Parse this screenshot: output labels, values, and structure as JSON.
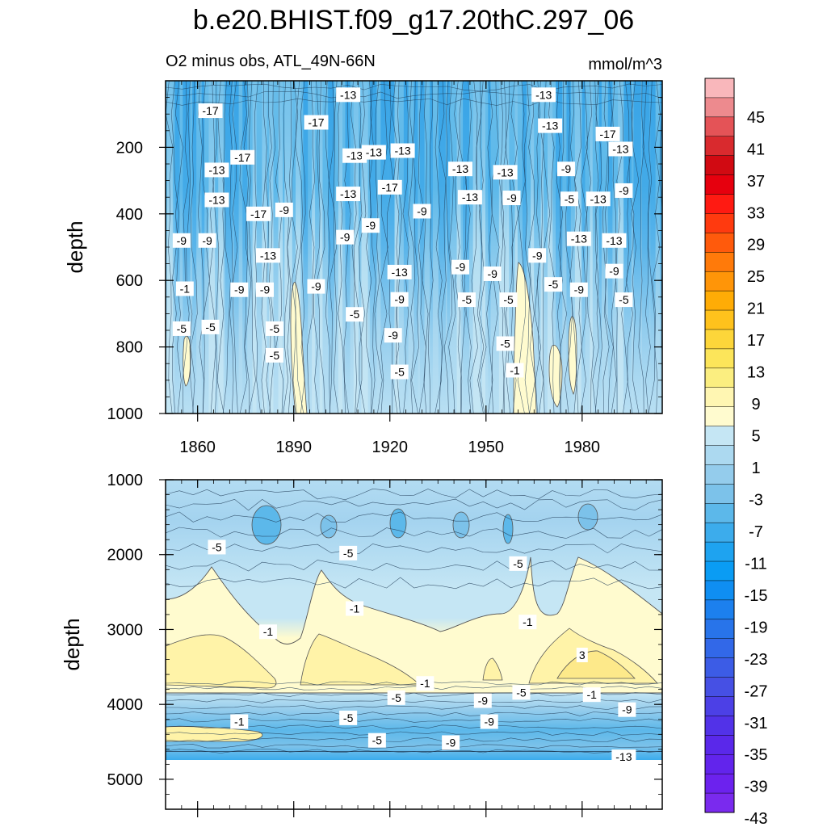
{
  "chart_data": {
    "type": "heatmap",
    "title": "b.e20.BHIST.f09_g17.20thC.297_06",
    "subtitle_left": "O2 minus obs, ATL_49N-66N",
    "units": "mmol/m^3",
    "xlim": [
      1850,
      2005
    ],
    "x_ticks": [
      "1860",
      "1890",
      "1920",
      "1950",
      "1980"
    ],
    "panels": [
      {
        "name": "upper",
        "ylabel": "depth",
        "ylim": [
          0,
          1000
        ],
        "y_ticks": [
          "200",
          "400",
          "600",
          "800",
          "1000"
        ],
        "contour_labels": [
          {
            "text": "-17",
            "x": 1864,
            "y": 90
          },
          {
            "text": "-13",
            "x": 1907,
            "y": 42
          },
          {
            "text": "-13",
            "x": 1968,
            "y": 42
          },
          {
            "text": "-17",
            "x": 1897,
            "y": 125
          },
          {
            "text": "-13",
            "x": 1970,
            "y": 135
          },
          {
            "text": "-17",
            "x": 1988,
            "y": 160
          },
          {
            "text": "-13",
            "x": 1909,
            "y": 225
          },
          {
            "text": "-13",
            "x": 1915,
            "y": 215
          },
          {
            "text": "-13",
            "x": 1924,
            "y": 210
          },
          {
            "text": "-13",
            "x": 1992,
            "y": 205
          },
          {
            "text": "-17",
            "x": 1874,
            "y": 230
          },
          {
            "text": "-13",
            "x": 1866,
            "y": 268
          },
          {
            "text": "-13",
            "x": 1942,
            "y": 265
          },
          {
            "text": "-13",
            "x": 1956,
            "y": 275
          },
          {
            "text": "-9",
            "x": 1975,
            "y": 265
          },
          {
            "text": "-17",
            "x": 1920,
            "y": 320
          },
          {
            "text": "-9",
            "x": 1993,
            "y": 330
          },
          {
            "text": "-13",
            "x": 1866,
            "y": 358
          },
          {
            "text": "-13",
            "x": 1907,
            "y": 340
          },
          {
            "text": "-13",
            "x": 1945,
            "y": 350
          },
          {
            "text": "-9",
            "x": 1958,
            "y": 352
          },
          {
            "text": "-5",
            "x": 1976,
            "y": 355
          },
          {
            "text": "-13",
            "x": 1985,
            "y": 355
          },
          {
            "text": "-17",
            "x": 1879,
            "y": 400
          },
          {
            "text": "-9",
            "x": 1887,
            "y": 388
          },
          {
            "text": "-9",
            "x": 1930,
            "y": 392
          },
          {
            "text": "-9",
            "x": 1914,
            "y": 435
          },
          {
            "text": "-9",
            "x": 1906,
            "y": 470
          },
          {
            "text": "-9",
            "x": 1855,
            "y": 480
          },
          {
            "text": "-9",
            "x": 1863,
            "y": 480
          },
          {
            "text": "-13",
            "x": 1979,
            "y": 475
          },
          {
            "text": "-13",
            "x": 1990,
            "y": 480
          },
          {
            "text": "-13",
            "x": 1882,
            "y": 525
          },
          {
            "text": "-9",
            "x": 1966,
            "y": 525
          },
          {
            "text": "-9",
            "x": 1942,
            "y": 560
          },
          {
            "text": "-13",
            "x": 1923,
            "y": 575
          },
          {
            "text": "-9",
            "x": 1952,
            "y": 580
          },
          {
            "text": "-9",
            "x": 1990,
            "y": 572
          },
          {
            "text": "-1",
            "x": 1856,
            "y": 625
          },
          {
            "text": "-9",
            "x": 1873,
            "y": 628
          },
          {
            "text": "-9",
            "x": 1881,
            "y": 628
          },
          {
            "text": "-9",
            "x": 1897,
            "y": 618
          },
          {
            "text": "-5",
            "x": 1971,
            "y": 612
          },
          {
            "text": "-9",
            "x": 1979,
            "y": 628
          },
          {
            "text": "-9",
            "x": 1923,
            "y": 657
          },
          {
            "text": "-5",
            "x": 1944,
            "y": 658
          },
          {
            "text": "-5",
            "x": 1957,
            "y": 658
          },
          {
            "text": "-5",
            "x": 1993,
            "y": 658
          },
          {
            "text": "-5",
            "x": 1909,
            "y": 702
          },
          {
            "text": "-5",
            "x": 1855,
            "y": 745
          },
          {
            "text": "-5",
            "x": 1864,
            "y": 740
          },
          {
            "text": "-5",
            "x": 1884,
            "y": 745
          },
          {
            "text": "-9",
            "x": 1921,
            "y": 765
          },
          {
            "text": "-5",
            "x": 1956,
            "y": 790
          },
          {
            "text": "-5",
            "x": 1884,
            "y": 825
          },
          {
            "text": "-1",
            "x": 1959,
            "y": 870
          },
          {
            "text": "-5",
            "x": 1923,
            "y": 875
          }
        ]
      },
      {
        "name": "lower",
        "ylabel": "depth",
        "ylim": [
          1000,
          5400
        ],
        "y_ticks": [
          "1000",
          "2000",
          "3000",
          "4000",
          "5000"
        ],
        "contour_labels": [
          {
            "text": "-5",
            "x": 1866,
            "y": 1900
          },
          {
            "text": "-5",
            "x": 1907,
            "y": 1980
          },
          {
            "text": "-5",
            "x": 1960,
            "y": 2120
          },
          {
            "text": "-1",
            "x": 1909,
            "y": 2720
          },
          {
            "text": "-1",
            "x": 1963,
            "y": 2900
          },
          {
            "text": "-1",
            "x": 1882,
            "y": 3030
          },
          {
            "text": "3",
            "x": 1980,
            "y": 3340
          },
          {
            "text": "-1",
            "x": 1931,
            "y": 3720
          },
          {
            "text": "-5",
            "x": 1922,
            "y": 3910
          },
          {
            "text": "-9",
            "x": 1949,
            "y": 3950
          },
          {
            "text": "-5",
            "x": 1961,
            "y": 3840
          },
          {
            "text": "-1",
            "x": 1983,
            "y": 3870
          },
          {
            "text": "-9",
            "x": 1994,
            "y": 4070
          },
          {
            "text": "-1",
            "x": 1873,
            "y": 4230
          },
          {
            "text": "-5",
            "x": 1907,
            "y": 4180
          },
          {
            "text": "-9",
            "x": 1951,
            "y": 4230
          },
          {
            "text": "-5",
            "x": 1916,
            "y": 4480
          },
          {
            "text": "-9",
            "x": 1939,
            "y": 4510
          },
          {
            "text": "-13",
            "x": 1993,
            "y": 4700
          }
        ]
      }
    ],
    "colorbar": {
      "ticks": [
        "45",
        "41",
        "37",
        "33",
        "29",
        "25",
        "21",
        "17",
        "13",
        "9",
        "5",
        "1",
        "-3",
        "-7",
        "-11",
        "-15",
        "-19",
        "-23",
        "-27",
        "-31",
        "-35",
        "-39",
        "-43"
      ],
      "colors": [
        "#f9b7bb",
        "#ed8a8e",
        "#e45357",
        "#d92a2e",
        "#d10a12",
        "#e6000e",
        "#ff1a12",
        "#ff3a0f",
        "#ff5a0c",
        "#ff7a0a",
        "#ff9508",
        "#ffac06",
        "#ffc21c",
        "#fdd63a",
        "#fce55a",
        "#fbee80",
        "#fff6b2",
        "#fffbcf",
        "#c5e6f4",
        "#acd9f0",
        "#94ccec",
        "#7cc2ea",
        "#5cb8ea",
        "#3cacec",
        "#1ea3f0",
        "#0a9cf4",
        "#0f8ef2",
        "#1c80ee",
        "#2874ea",
        "#3268e8",
        "#3c5ce6",
        "#4650e4",
        "#4c40e6",
        "#5232e8",
        "#5a28ea",
        "#6224ec",
        "#6c22ee",
        "#7a2aee"
      ]
    }
  }
}
